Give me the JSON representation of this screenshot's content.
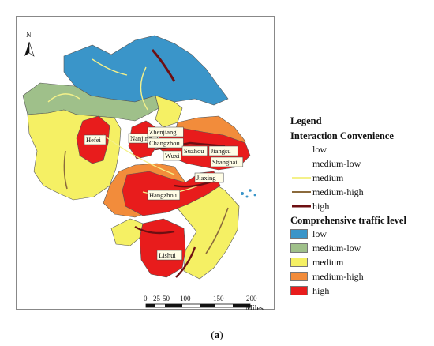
{
  "map": {
    "north_label": "N",
    "cities": [
      "Hefei",
      "Nanjing",
      "Zhenjiang",
      "Changzhou",
      "Wuxi",
      "Suzhou",
      "Jiangsu",
      "Shanghai",
      "Jiaxing",
      "Hangzhou",
      "Lishui"
    ],
    "scale_bar": {
      "ticks": [
        "0",
        "25",
        "50",
        "100",
        "150",
        "200"
      ],
      "unit": "Miles"
    }
  },
  "legend": {
    "title": "Legend",
    "interaction_title": "Interaction Convenience",
    "interaction_items": [
      {
        "label": "low",
        "color": "#ffffff"
      },
      {
        "label": "medium-low",
        "color": "#ffffff"
      },
      {
        "label": "medium",
        "color": "#f4f18a"
      },
      {
        "label": "medium-high",
        "color": "#8b6a3c"
      },
      {
        "label": "high",
        "color": "#6e0f12"
      }
    ],
    "traffic_title": "Comprehensive traffic level",
    "traffic_items": [
      {
        "label": "low",
        "color": "#3a95c9"
      },
      {
        "label": "medium-low",
        "color": "#9fc08a"
      },
      {
        "label": "medium",
        "color": "#f5f064"
      },
      {
        "label": "medium-high",
        "color": "#f28c3b"
      },
      {
        "label": "high",
        "color": "#e81c1c"
      }
    ]
  },
  "caption": {
    "open": "(",
    "letter": "a",
    "close": ")"
  }
}
